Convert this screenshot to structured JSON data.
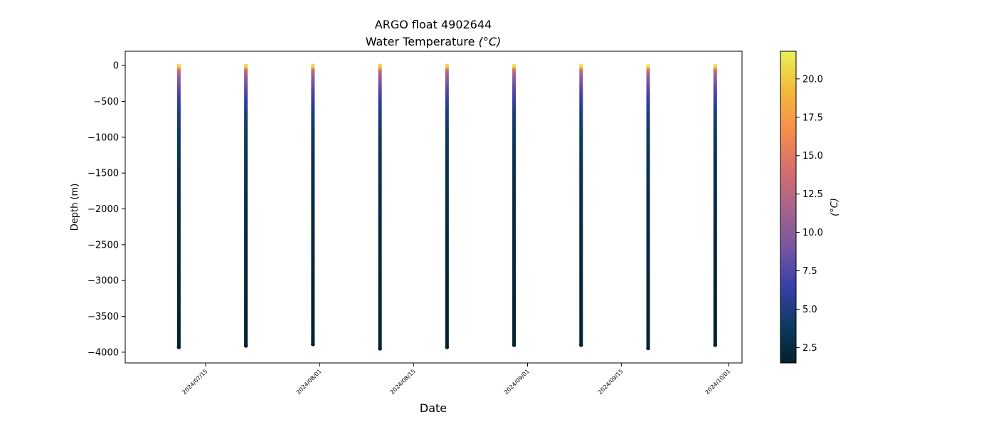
{
  "chart_data": {
    "type": "scatter",
    "title": "ARGO float 4902644",
    "subtitle": "Water Temperature",
    "subtitle_unit": "(°C)",
    "xlabel": "Date",
    "ylabel": "Depth (m)",
    "colorbar_label": "(°C)",
    "colormap": "thermal",
    "colormap_colors": [
      "#04202c",
      "#0e3b64",
      "#3a40a8",
      "#7a57a0",
      "#a8648a",
      "#d86f6b",
      "#f6904b",
      "#f2ba3a",
      "#e8f159"
    ],
    "ylim": [
      -4150,
      200
    ],
    "xlim": [
      "2024-07-03",
      "2024-10-03"
    ],
    "clim": [
      1.5,
      21.8
    ],
    "y_ticks": [
      0,
      -500,
      -1000,
      -1500,
      -2000,
      -2500,
      -3000,
      -3500,
      -4000
    ],
    "y_tick_labels": [
      "0",
      "−500",
      "−1000",
      "−1500",
      "−2000",
      "−2500",
      "−3000",
      "−3500",
      "−4000"
    ],
    "x_ticks": [
      "2024-07-15",
      "2024-08-01",
      "2024-08-15",
      "2024-09-01",
      "2024-09-15",
      "2024-10-01"
    ],
    "x_tick_labels": [
      "2024/07/15",
      "2024/08/01",
      "2024/08/15",
      "2024/09/01",
      "2024/09/15",
      "2024/10/01"
    ],
    "colorbar_ticks": [
      2.5,
      5.0,
      7.5,
      10.0,
      12.5,
      15.0,
      17.5,
      20.0
    ],
    "colorbar_tick_labels": [
      "2.5",
      "5.0",
      "7.5",
      "10.0",
      "12.5",
      "15.0",
      "17.5",
      "20.0"
    ],
    "profile_max_depth": [
      -3930,
      -3910,
      -3890,
      -3950,
      -3930,
      -3900,
      -3900,
      -3945,
      -3900
    ],
    "profiles": [
      {
        "date": "2024-07-11",
        "max_depth": -3930,
        "surface_temp": 20.5
      },
      {
        "date": "2024-07-21",
        "max_depth": -3910,
        "surface_temp": 20.8
      },
      {
        "date": "2024-07-31",
        "max_depth": -3890,
        "surface_temp": 20.7
      },
      {
        "date": "2024-08-10",
        "max_depth": -3950,
        "surface_temp": 20.3
      },
      {
        "date": "2024-08-20",
        "max_depth": -3930,
        "surface_temp": 20.6
      },
      {
        "date": "2024-08-30",
        "max_depth": -3900,
        "surface_temp": 21.2
      },
      {
        "date": "2024-09-09",
        "max_depth": -3900,
        "surface_temp": 21.0
      },
      {
        "date": "2024-09-19",
        "max_depth": -3945,
        "surface_temp": 21.5
      },
      {
        "date": "2024-09-29",
        "max_depth": -3900,
        "surface_temp": 21.3
      }
    ],
    "temperature_profile": [
      {
        "depth": 0,
        "temp": 21.0
      },
      {
        "depth": -25,
        "temp": 17.0
      },
      {
        "depth": -60,
        "temp": 13.5
      },
      {
        "depth": -120,
        "temp": 11.0
      },
      {
        "depth": -200,
        "temp": 9.5
      },
      {
        "depth": -300,
        "temp": 8.0
      },
      {
        "depth": -450,
        "temp": 6.5
      },
      {
        "depth": -650,
        "temp": 5.0
      },
      {
        "depth": -900,
        "temp": 4.0
      },
      {
        "depth": -1300,
        "temp": 3.3
      },
      {
        "depth": -2000,
        "temp": 2.6
      },
      {
        "depth": -3000,
        "temp": 2.0
      },
      {
        "depth": -4000,
        "temp": 1.6
      }
    ]
  }
}
